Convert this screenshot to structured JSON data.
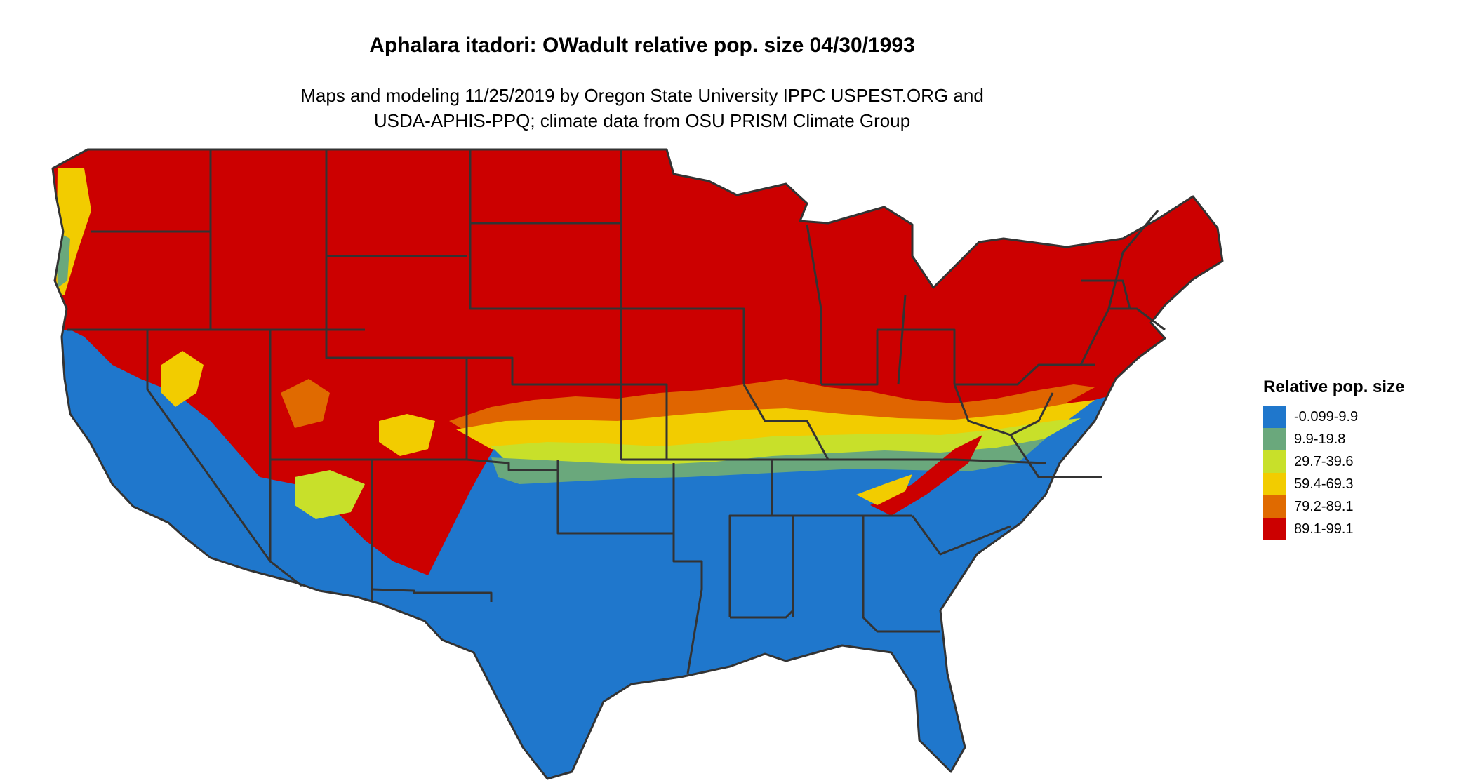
{
  "title": "Aphalara itadori: OWadult relative pop. size 04/30/1993",
  "subtitle": {
    "line1": "Maps and modeling 11/25/2019 by Oregon State University IPPC USPEST.ORG and",
    "line2": "USDA-APHIS-PPQ; climate data from OSU PRISM Climate Group"
  },
  "legend": {
    "title": "Relative pop. size",
    "items": [
      {
        "label": "-0.099-9.9",
        "color": "#1f77cc"
      },
      {
        "label": "9.9-19.8",
        "color": "#6aa87c"
      },
      {
        "label": "29.7-39.6",
        "color": "#c8e02a"
      },
      {
        "label": "59.4-69.3",
        "color": "#f2cc00"
      },
      {
        "label": "79.2-89.1",
        "color": "#e06a00"
      },
      {
        "label": "89.1-99.1",
        "color": "#cc0000"
      }
    ]
  },
  "map": {
    "region": "contiguous-united-states",
    "border_color": "#333333"
  }
}
